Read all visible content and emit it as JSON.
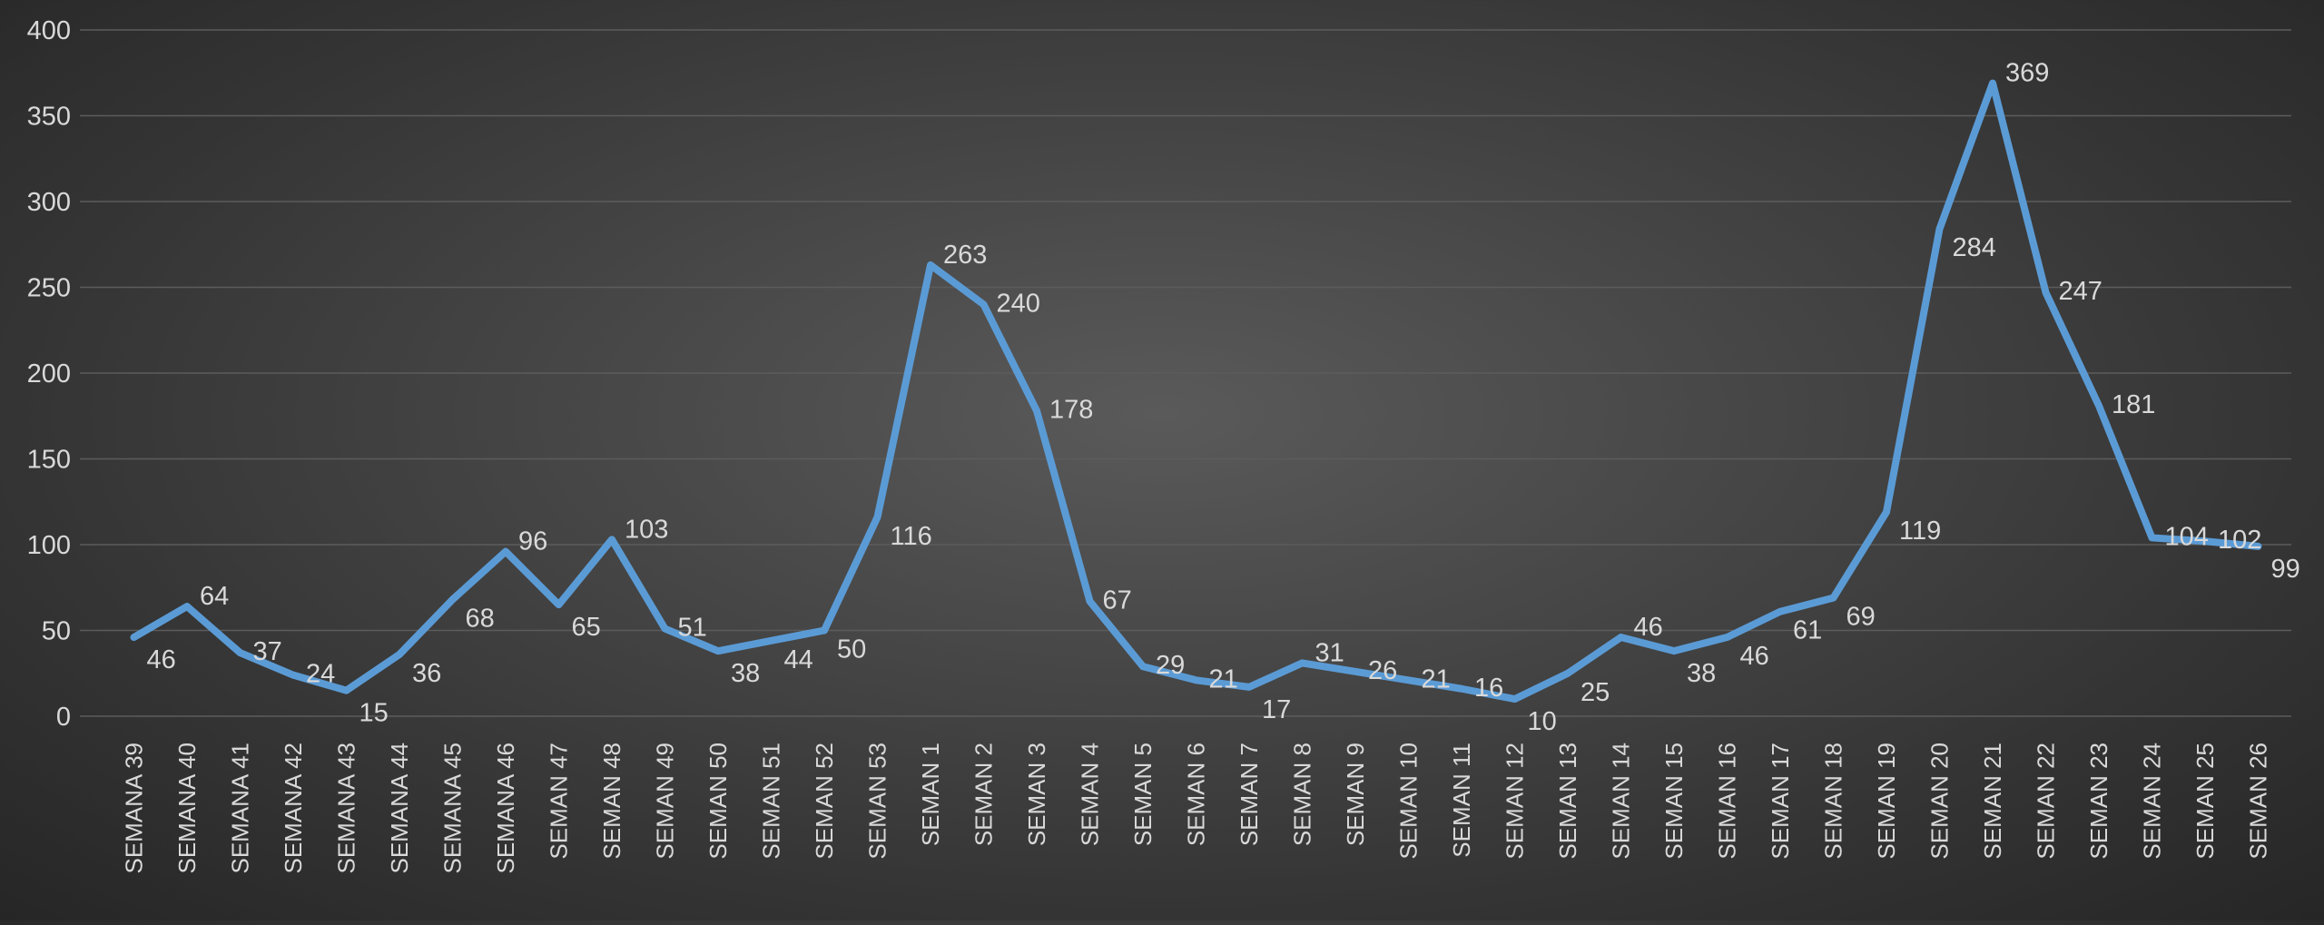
{
  "chart_data": {
    "type": "line",
    "title": "",
    "xlabel": "",
    "ylabel": "",
    "ylim": [
      0,
      400
    ],
    "yticks": [
      0,
      50,
      100,
      150,
      200,
      250,
      300,
      350,
      400
    ],
    "grid": true,
    "legend": "none",
    "line_color": "#5b9bd5",
    "categories": [
      "SEMANA 39",
      "SEMANA 40",
      "SEMANA 41",
      "SEMANA 42",
      "SEMANA 43",
      "SEMANA 44",
      "SEMANA 45",
      "SEMANA 46",
      "SEMAN 47",
      "SEMAN 48",
      "SEMAN 49",
      "SEMAN 50",
      "SEMAN 51",
      "SEMAN 52",
      "SEMAN 53",
      "SEMAN 1",
      "SEMAN 2",
      "SEMAN 3",
      "SEMAN 4",
      "SEMAN 5",
      "SEMAN 6",
      "SEMAN 7",
      "SEMAN 8",
      "SEMAN 9",
      "SEMAN 10",
      "SEMAN 11",
      "SEMAN 12",
      "SEMAN 13",
      "SEMAN 14",
      "SEMAN 15",
      "SEMAN 16",
      "SEMAN 17",
      "SEMAN 18",
      "SEMAN 19",
      "SEMAN 20",
      "SEMAN 21",
      "SEMAN 22",
      "SEMAN 23",
      "SEMAN 24",
      "SEMAN 25",
      "SEMAN 26"
    ],
    "series": [
      {
        "values": [
          46,
          64,
          37,
          24,
          15,
          36,
          68,
          96,
          65,
          103,
          51,
          38,
          44,
          50,
          116,
          263,
          240,
          178,
          67,
          29,
          21,
          17,
          31,
          26,
          21,
          16,
          10,
          25,
          46,
          38,
          46,
          61,
          69,
          119,
          284,
          369,
          247,
          181,
          104,
          102,
          99
        ]
      }
    ]
  }
}
